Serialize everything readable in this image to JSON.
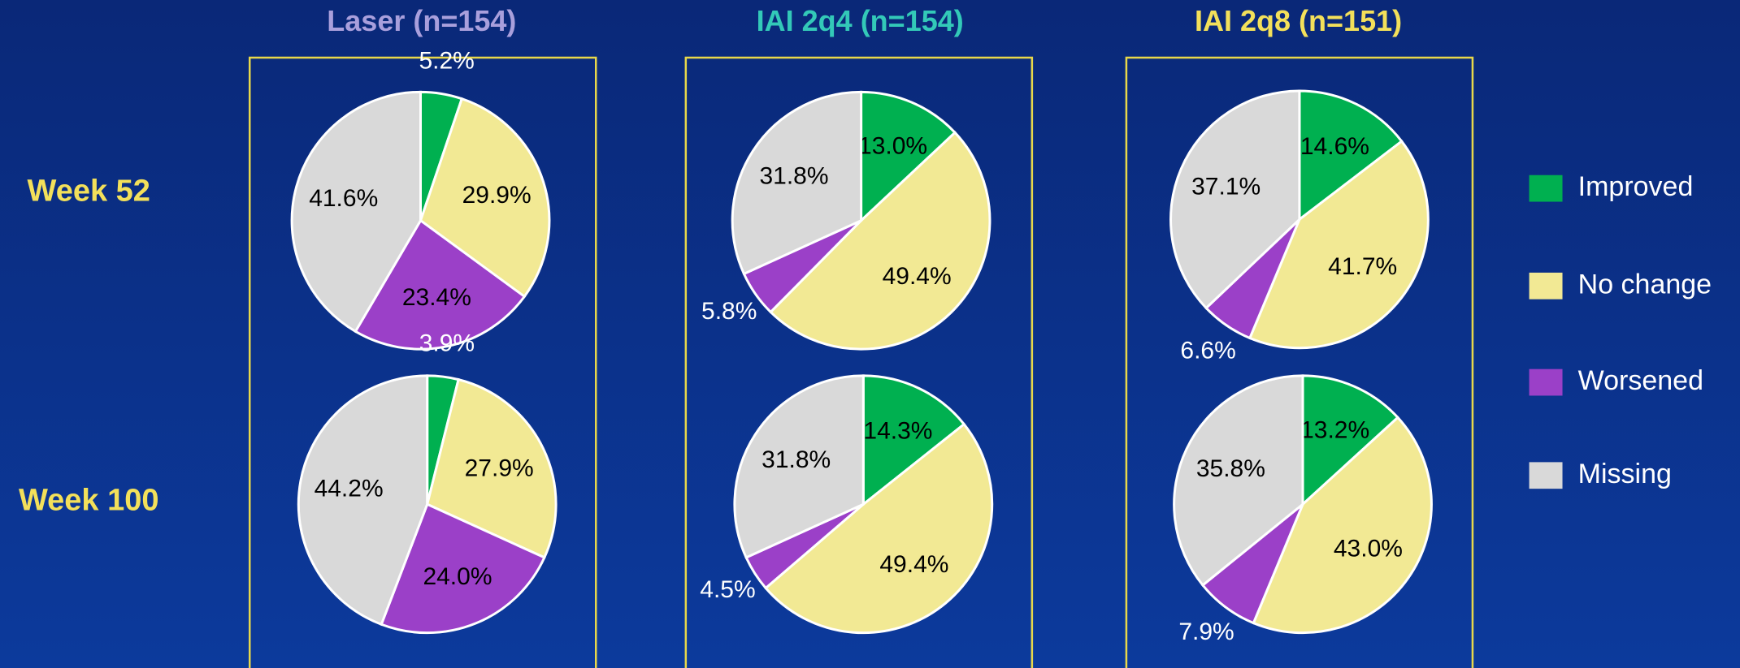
{
  "column_titles": [
    "Laser (n=154)",
    "IAI 2q4  (n=154)",
    "IAI 2q8 (n=151)"
  ],
  "row_labels": [
    "Week 52",
    "Week 100"
  ],
  "chart_data": [
    {
      "type": "pie",
      "categories": [
        "Improved",
        "No change",
        "Worsened",
        "Missing"
      ],
      "colors": [
        "#00b050",
        "#f2e994",
        "#9b40c8",
        "#d9d9d9"
      ],
      "values": [
        5.2,
        29.9,
        23.4,
        41.6
      ],
      "value_labels": [
        "5.2%",
        "29.9%",
        "23.4%",
        "41.6%"
      ]
    },
    {
      "type": "pie",
      "categories": [
        "Improved",
        "No change",
        "Worsened",
        "Missing"
      ],
      "colors": [
        "#00b050",
        "#f2e994",
        "#9b40c8",
        "#d9d9d9"
      ],
      "values": [
        13.0,
        49.4,
        5.8,
        31.8
      ],
      "value_labels": [
        "13.0%",
        "49.4%",
        "5.8%",
        "31.8%"
      ]
    },
    {
      "type": "pie",
      "categories": [
        "Improved",
        "No change",
        "Worsened",
        "Missing"
      ],
      "colors": [
        "#00b050",
        "#f2e994",
        "#9b40c8",
        "#d9d9d9"
      ],
      "values": [
        14.6,
        41.7,
        6.6,
        37.1
      ],
      "value_labels": [
        "14.6%",
        "41.7%",
        "6.6%",
        "37.1%"
      ]
    },
    {
      "type": "pie",
      "categories": [
        "Improved",
        "No change",
        "Worsened",
        "Missing"
      ],
      "colors": [
        "#00b050",
        "#f2e994",
        "#9b40c8",
        "#d9d9d9"
      ],
      "values": [
        3.9,
        27.9,
        24.0,
        44.2
      ],
      "value_labels": [
        "3.9%",
        "27.9%",
        "24.0%",
        "44.2%"
      ]
    },
    {
      "type": "pie",
      "categories": [
        "Improved",
        "No change",
        "Worsened",
        "Missing"
      ],
      "colors": [
        "#00b050",
        "#f2e994",
        "#9b40c8",
        "#d9d9d9"
      ],
      "values": [
        14.3,
        49.4,
        4.5,
        31.8
      ],
      "value_labels": [
        "14.3%",
        "49.4%",
        "4.5%",
        "31.8%"
      ]
    },
    {
      "type": "pie",
      "categories": [
        "Improved",
        "No change",
        "Worsened",
        "Missing"
      ],
      "colors": [
        "#00b050",
        "#f2e994",
        "#9b40c8",
        "#d9d9d9"
      ],
      "values": [
        13.2,
        43.0,
        7.9,
        35.8
      ],
      "value_labels": [
        "13.2%",
        "43.0%",
        "7.9%",
        "35.8%"
      ]
    }
  ]
}
